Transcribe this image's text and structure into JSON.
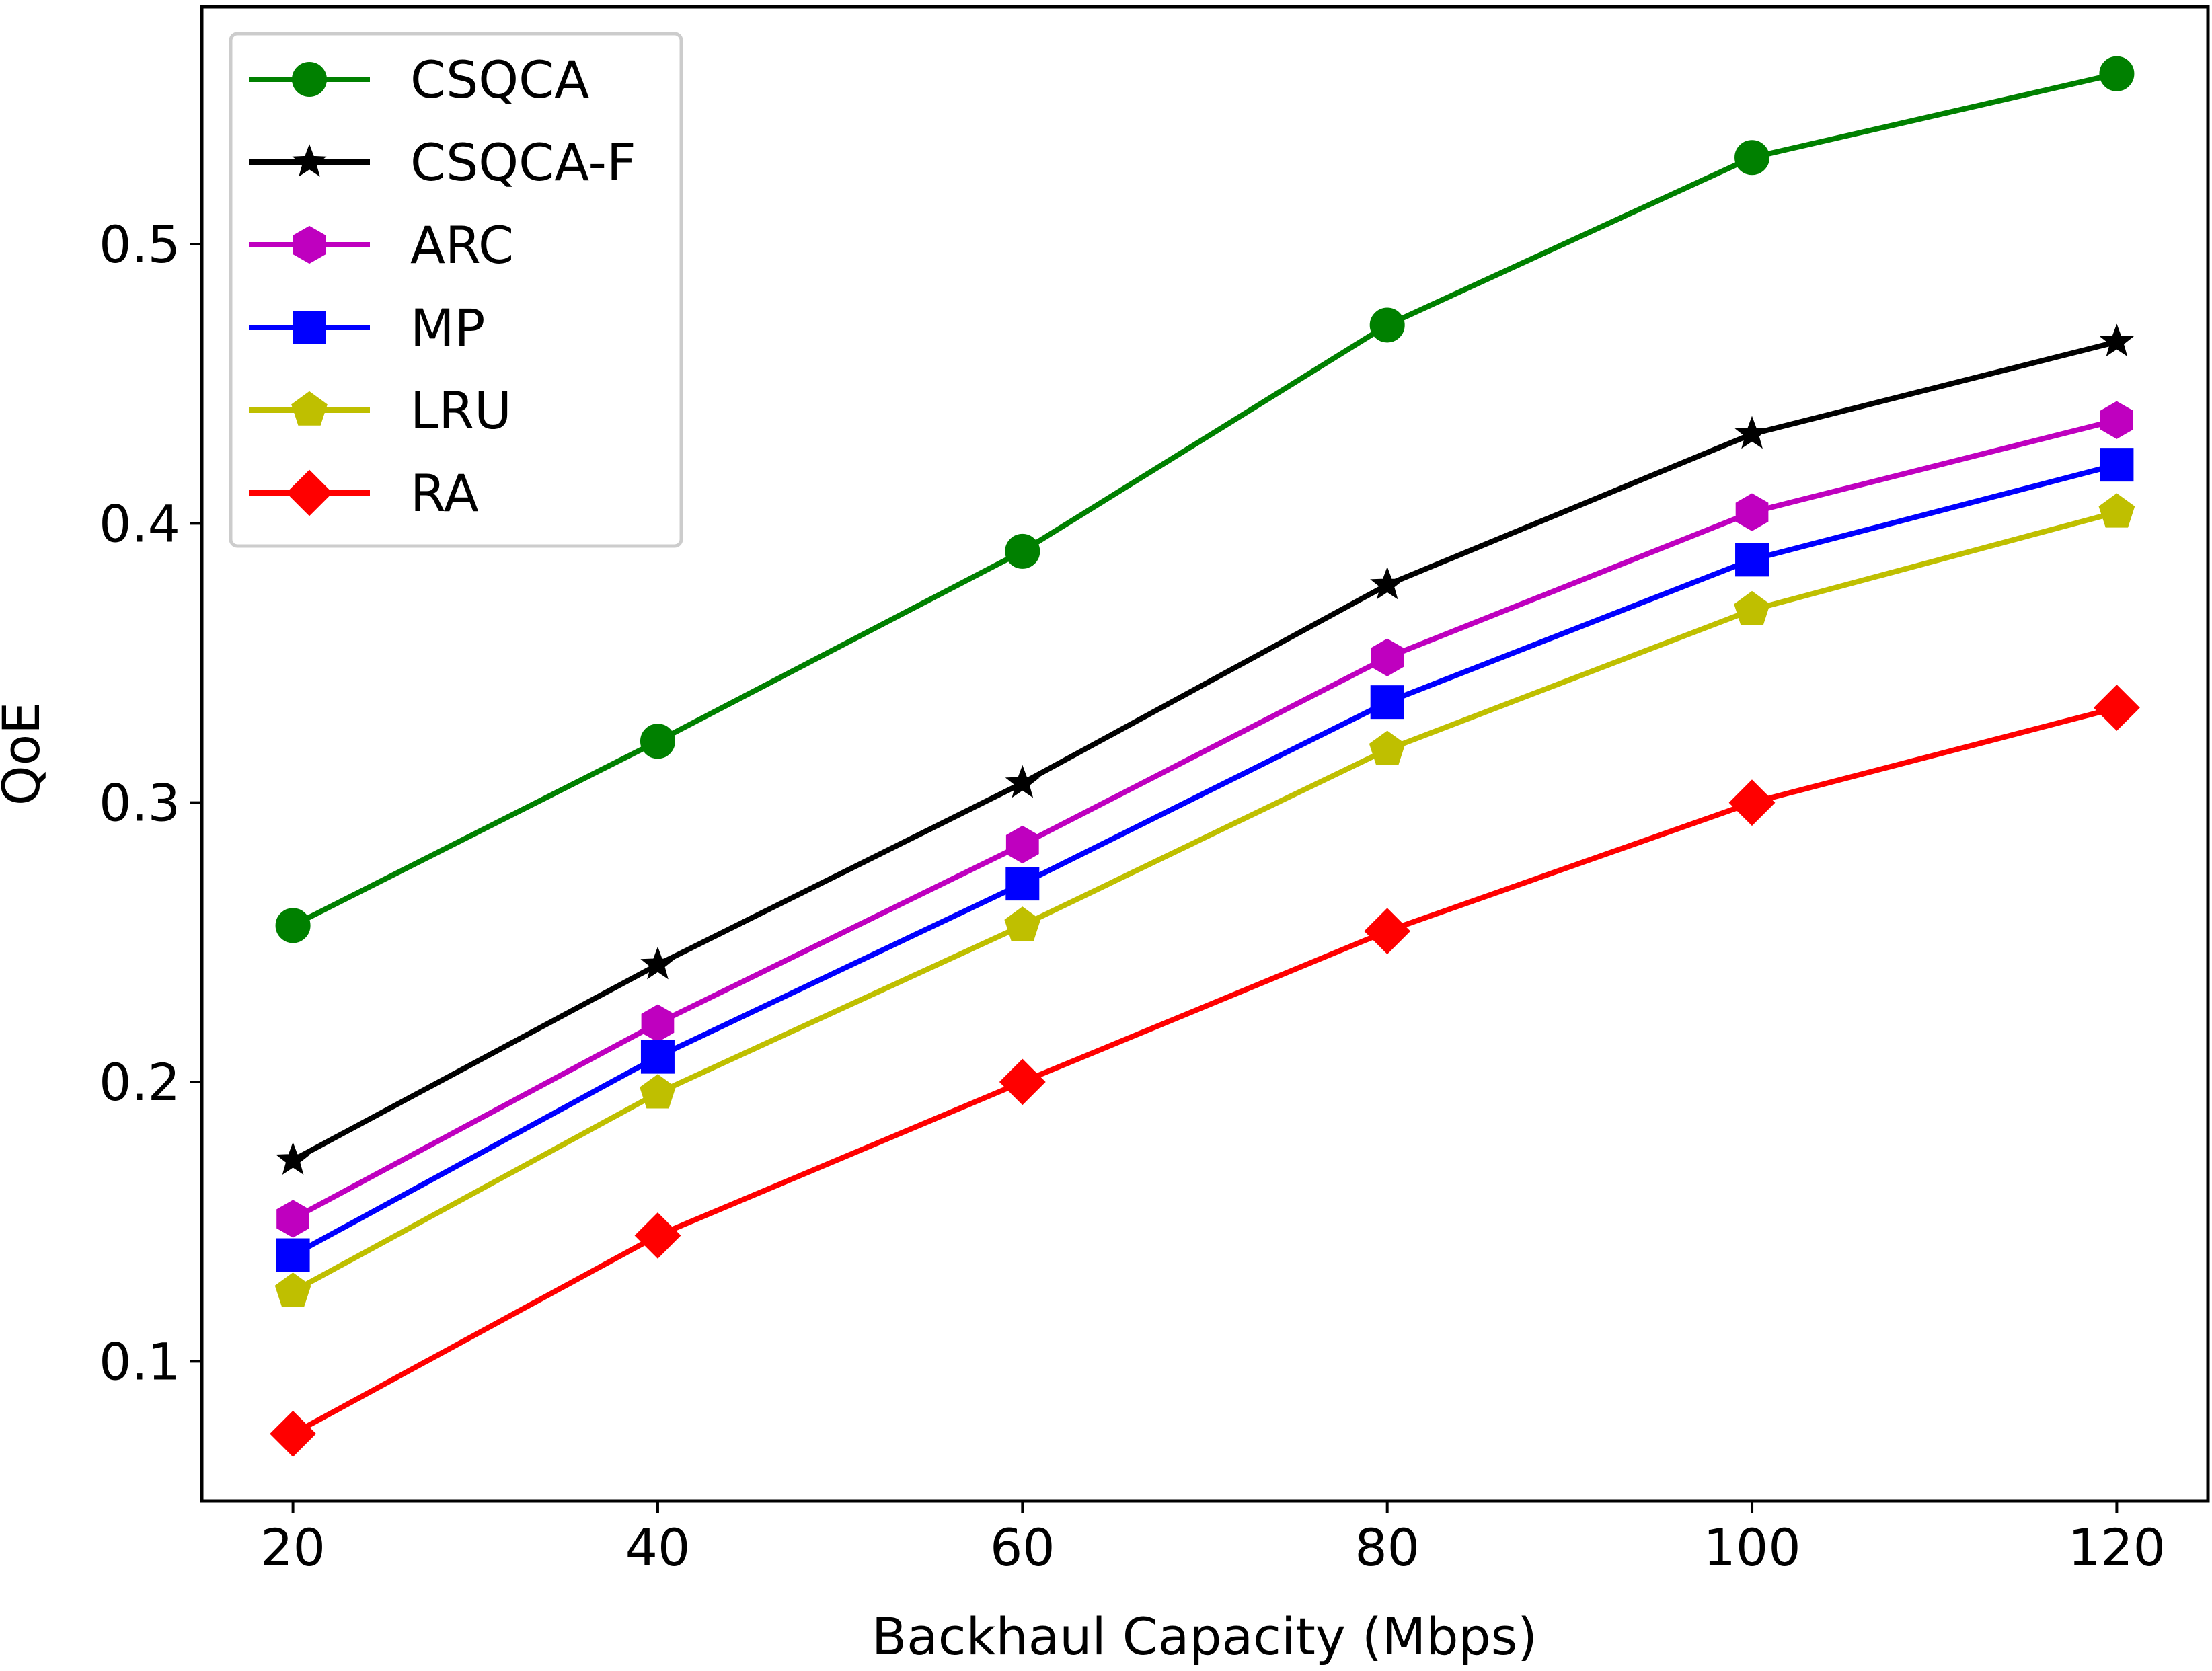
{
  "chart_data": {
    "type": "line",
    "title": "",
    "xlabel": "Backhaul Capacity (Mbps)",
    "ylabel": "QoE",
    "x": [
      20,
      40,
      60,
      80,
      100,
      120
    ],
    "xlim": [
      15,
      125
    ],
    "ylim": [
      0.05,
      0.585
    ],
    "xticks": [
      20,
      40,
      60,
      80,
      100,
      120
    ],
    "yticks": [
      0.1,
      0.2,
      0.3,
      0.4,
      0.5
    ],
    "ytick_labels": [
      "0.1",
      "0.2",
      "0.3",
      "0.4",
      "0.5"
    ],
    "grid": false,
    "legend_position": "top-left",
    "series": [
      {
        "name": "CSQCA",
        "color": "#008000",
        "marker": "circle",
        "values": [
          0.256,
          0.322,
          0.39,
          0.471,
          0.531,
          0.561
        ]
      },
      {
        "name": "CSQCA-F",
        "color": "#000000",
        "marker": "star",
        "values": [
          0.172,
          0.242,
          0.307,
          0.378,
          0.432,
          0.465
        ]
      },
      {
        "name": "ARC",
        "color": "#bf00bf",
        "marker": "hexagon",
        "values": [
          0.151,
          0.221,
          0.285,
          0.352,
          0.404,
          0.437
        ]
      },
      {
        "name": "MP",
        "color": "#0000ff",
        "marker": "square",
        "values": [
          0.138,
          0.209,
          0.271,
          0.336,
          0.387,
          0.421
        ]
      },
      {
        "name": "LRU",
        "color": "#bfbf00",
        "marker": "pentagon",
        "values": [
          0.125,
          0.196,
          0.256,
          0.319,
          0.369,
          0.404
        ]
      },
      {
        "name": "RA",
        "color": "#ff0000",
        "marker": "diamond",
        "values": [
          0.074,
          0.145,
          0.2,
          0.254,
          0.3,
          0.334
        ]
      }
    ]
  }
}
